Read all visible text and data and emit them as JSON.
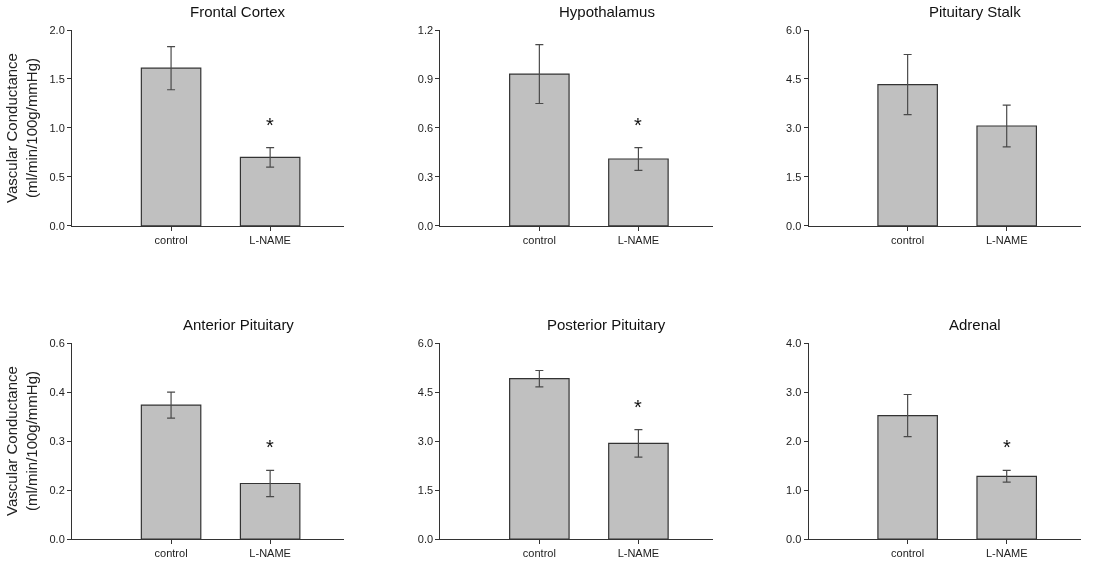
{
  "chart_data": [
    {
      "type": "bar",
      "title": "Frontal Cortex",
      "ylabel": "Vascular Conductance\n(ml/min/100g/mmHg)",
      "categories": [
        "control",
        "L-NAME"
      ],
      "values": [
        1.61,
        0.7
      ],
      "errors": [
        0.22,
        0.1
      ],
      "color": "#c0c0c0",
      "ylim": [
        0,
        2.0
      ],
      "yticks": [
        {
          "value": 0,
          "label": "0.0"
        },
        {
          "value": 0.5,
          "label": "0.5"
        },
        {
          "value": 1.0,
          "label": "1.0"
        },
        {
          "value": 1.5,
          "label": "1.5"
        },
        {
          "value": 2.0,
          "label": "2.0"
        }
      ],
      "annotations": [
        "*"
      ]
    },
    {
      "type": "bar",
      "title": "Hypothalamus",
      "categories": [
        "control",
        "L-NAME"
      ],
      "values": [
        0.93,
        0.41
      ],
      "errors": [
        0.18,
        0.07
      ],
      "color": "#c0c0c0",
      "ylim": [
        0,
        1.2
      ],
      "yticks": [
        {
          "value": 0,
          "label": "0.0"
        },
        {
          "value": 0.3,
          "label": "0.3"
        },
        {
          "value": 0.6,
          "label": "0.6"
        },
        {
          "value": 0.9,
          "label": "0.9"
        },
        {
          "value": 1.2,
          "label": "1.2"
        }
      ],
      "annotations": [
        "*"
      ]
    },
    {
      "type": "bar",
      "title": "Pituitary Stalk",
      "categories": [
        "control",
        "L-NAME"
      ],
      "values": [
        4.33,
        3.06
      ],
      "errors": [
        0.92,
        0.64
      ],
      "color": "#c0c0c0",
      "ylim": [
        0,
        6.0
      ],
      "yticks": [
        {
          "value": 0,
          "label": "0.0"
        },
        {
          "value": 1.5,
          "label": "1.5"
        },
        {
          "value": 3.0,
          "label": "3.0"
        },
        {
          "value": 4.5,
          "label": "4.5"
        },
        {
          "value": 6.0,
          "label": "6.0"
        }
      ]
    },
    {
      "type": "bar",
      "title": "Anterior Pituitary",
      "ylabel": "Vascular Conductance\n(ml/min/100g/mmHg)",
      "categories": [
        "control",
        "L-NAME"
      ],
      "values": [
        0.41,
        0.17
      ],
      "errors": [
        0.04,
        0.04
      ],
      "color": "#c0c0c0",
      "ylim": [
        0,
        0.6
      ],
      "yticks": [
        {
          "value": 0,
          "label": "0.0"
        },
        {
          "value": 0.15,
          "label": "0.2"
        },
        {
          "value": 0.3,
          "label": "0.3"
        },
        {
          "value": 0.45,
          "label": "0.4"
        },
        {
          "value": 0.6,
          "label": "0.6"
        }
      ],
      "annotations": [
        "*"
      ]
    },
    {
      "type": "bar",
      "title": "Posterior Pituitary",
      "categories": [
        "control",
        "L-NAME"
      ],
      "values": [
        4.91,
        2.93
      ],
      "errors": [
        0.25,
        0.42
      ],
      "color": "#c0c0c0",
      "ylim": [
        0,
        6.0
      ],
      "yticks": [
        {
          "value": 0,
          "label": "0.0"
        },
        {
          "value": 1.5,
          "label": "1.5"
        },
        {
          "value": 3.0,
          "label": "3.0"
        },
        {
          "value": 4.5,
          "label": "4.5"
        },
        {
          "value": 6.0,
          "label": "6.0"
        }
      ],
      "annotations": [
        "*"
      ]
    },
    {
      "type": "bar",
      "title": "Adrenal",
      "categories": [
        "control",
        "L-NAME"
      ],
      "values": [
        2.52,
        1.28
      ],
      "errors": [
        0.43,
        0.12
      ],
      "color": "#c0c0c0",
      "ylim": [
        0,
        4.0
      ],
      "yticks": [
        {
          "value": 0,
          "label": "0.0"
        },
        {
          "value": 1.0,
          "label": "1.0"
        },
        {
          "value": 2.0,
          "label": "2.0"
        },
        {
          "value": 3.0,
          "label": "3.0"
        },
        {
          "value": 4.0,
          "label": "4.0"
        }
      ],
      "annotations": [
        "*"
      ]
    }
  ]
}
